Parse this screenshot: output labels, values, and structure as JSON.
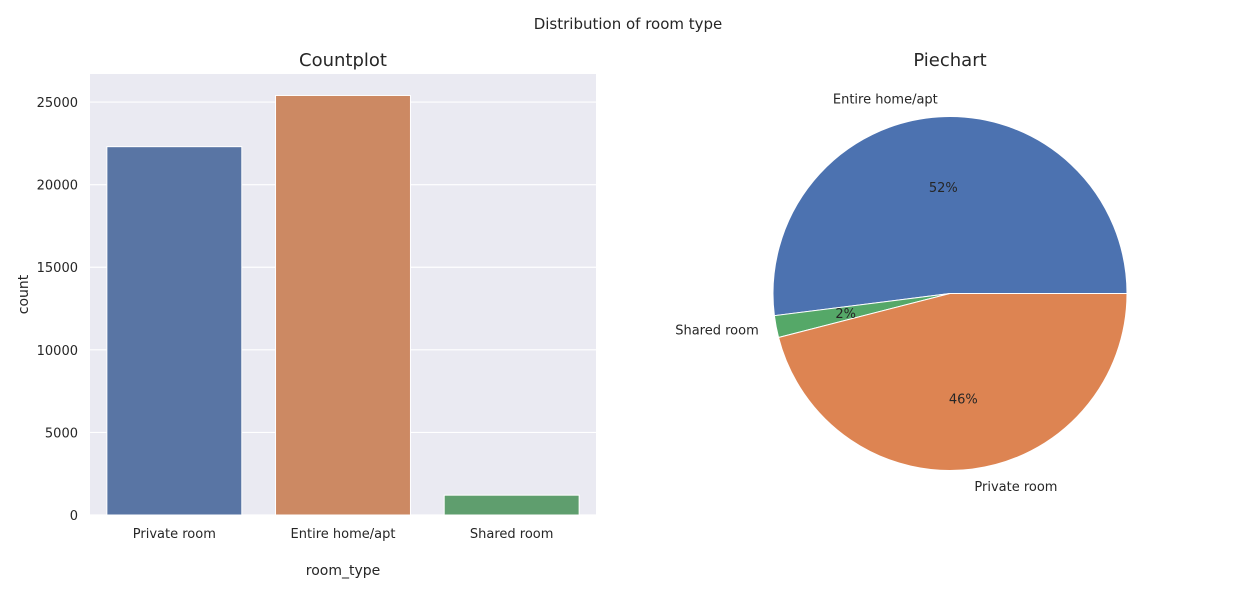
{
  "figure": {
    "suptitle": "Distribution of room type"
  },
  "chart_data": [
    {
      "type": "bar",
      "title": "Countplot",
      "xlabel": "room_type",
      "ylabel": "count",
      "categories": [
        "Private room",
        "Entire home/apt",
        "Shared room"
      ],
      "values": [
        22300,
        25400,
        1200
      ],
      "colors": [
        "#5975a4",
        "#cc8963",
        "#5f9e6e"
      ],
      "ylim": [
        0,
        26700
      ],
      "yticks": [
        0,
        5000,
        10000,
        15000,
        20000,
        25000
      ],
      "grid": true,
      "background": "#eaeaf2"
    },
    {
      "type": "pie",
      "title": "Piechart",
      "labels": [
        "Entire home/apt",
        "Shared room",
        "Private room"
      ],
      "values": [
        52,
        2,
        46
      ],
      "pct_labels": [
        "52%",
        "2%",
        "46%"
      ],
      "colors": [
        "#4c72b0",
        "#55a868",
        "#dd8452"
      ]
    }
  ]
}
